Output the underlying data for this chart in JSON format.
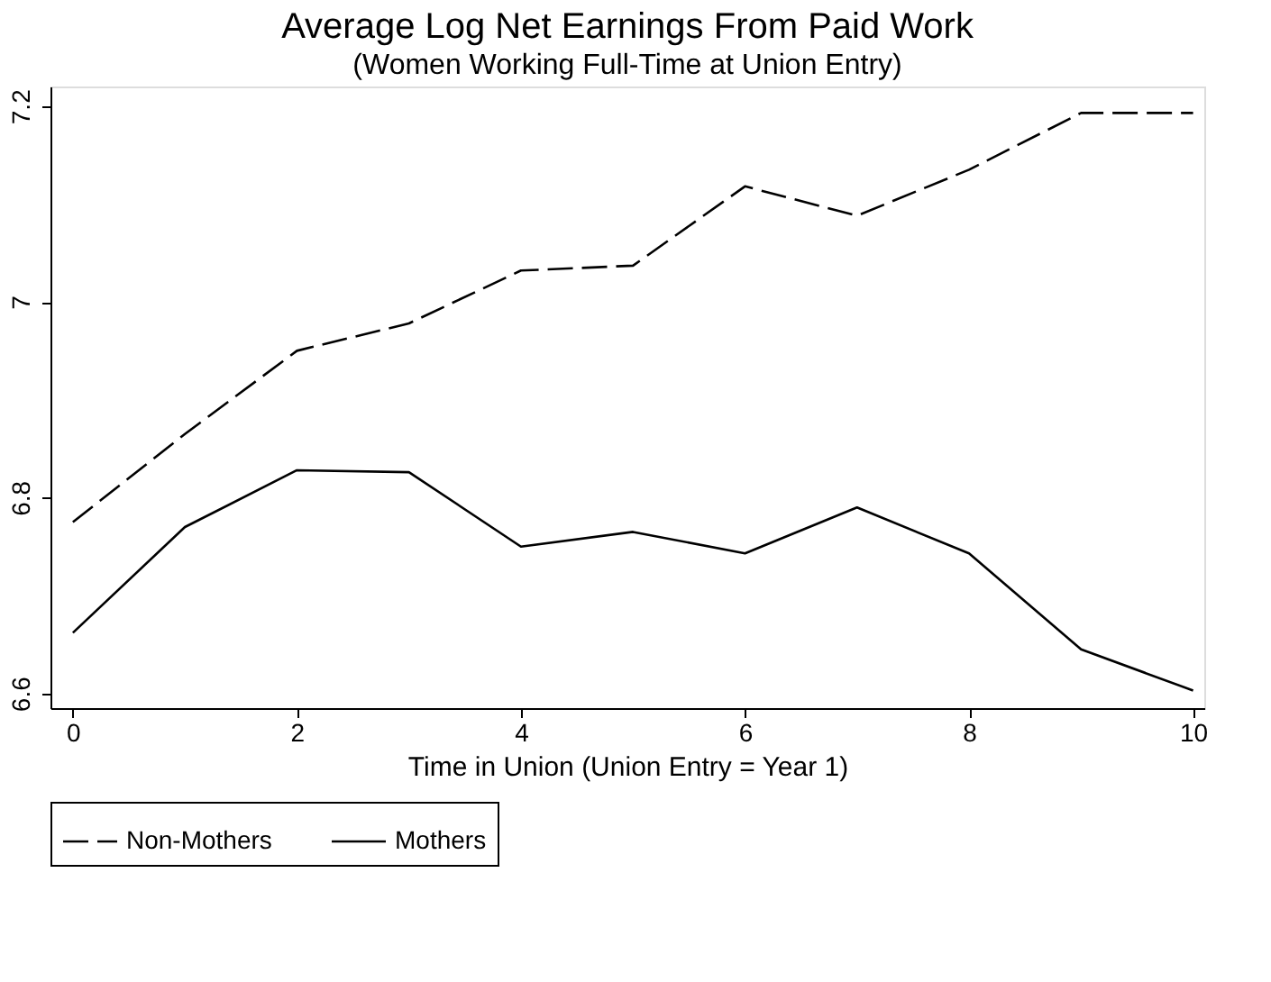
{
  "chart_data": {
    "type": "line",
    "title": "Average Log Net Earnings From Paid Work",
    "subtitle": "(Women Working Full-Time at Union Entry)",
    "xlabel": "Time in Union (Union Entry = Year 1)",
    "x": [
      0,
      1,
      2,
      3,
      4,
      5,
      6,
      7,
      8,
      9,
      10
    ],
    "series": [
      {
        "name": "Non-Mothers",
        "color": "#000000",
        "line_style": "dashed",
        "values": [
          6.775,
          6.865,
          6.95,
          6.978,
          7.032,
          7.037,
          7.118,
          7.088,
          7.135,
          7.193,
          7.193
        ]
      },
      {
        "name": "Mothers",
        "color": "#000000",
        "line_style": "solid",
        "values": [
          6.662,
          6.77,
          6.828,
          6.826,
          6.75,
          6.765,
          6.743,
          6.79,
          6.743,
          6.645,
          6.603
        ]
      }
    ],
    "xlim": [
      -0.2,
      10.1
    ],
    "ylim": [
      6.585,
      7.22
    ],
    "xticks": [
      0,
      2,
      4,
      6,
      8,
      10
    ],
    "yticks": [
      6.6,
      6.8,
      {
        "value": 7,
        "label": "7"
      },
      7.2
    ],
    "grid": false,
    "legend": "bottom",
    "marker": "none"
  }
}
